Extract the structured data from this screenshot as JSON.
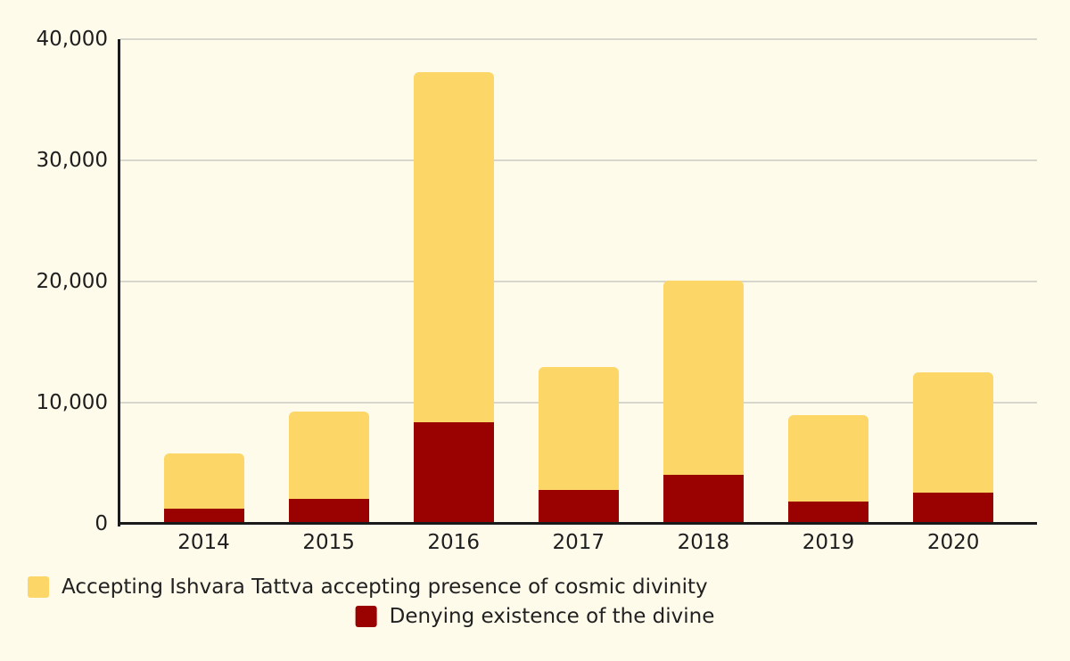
{
  "chart_data": {
    "type": "bar",
    "stacked": true,
    "title": "",
    "xlabel": "",
    "ylabel": "",
    "categories": [
      "2014",
      "2015",
      "2016",
      "2017",
      "2018",
      "2019",
      "2020"
    ],
    "series": [
      {
        "name": "Denying existence of the divine",
        "key": "denying",
        "color": "#9A0101",
        "values": [
          1200,
          2000,
          8300,
          2700,
          4000,
          1800,
          2500
        ]
      },
      {
        "name": "Accepting Ishvara Tattva accepting presence of cosmic divinity",
        "key": "accepting",
        "color": "#FCD666",
        "values": [
          4500,
          7200,
          28900,
          10200,
          16000,
          7100,
          9900
        ]
      }
    ],
    "stacked_totals": [
      5700,
      9200,
      37200,
      12900,
      20000,
      8900,
      12400
    ],
    "ylim": [
      0,
      40000
    ],
    "yticks": [
      {
        "value": 0,
        "label": "0"
      },
      {
        "value": 10000,
        "label": "10,000"
      },
      {
        "value": 20000,
        "label": "20,000"
      },
      {
        "value": 30000,
        "label": "30,000"
      },
      {
        "value": 40000,
        "label": "40,000"
      }
    ],
    "grid": true,
    "legend_position": "bottom"
  },
  "legend": {
    "items": [
      {
        "label": "Accepting Ishvara Tattva accepting presence of cosmic divinity",
        "color": "#FCD666"
      },
      {
        "label": "Denying existence of the divine",
        "color": "#9A0101"
      }
    ]
  },
  "colors": {
    "background": "#FFFBEB",
    "axis": "#1A1A1A",
    "gridline": "#D6D6CC",
    "text": "#1E1E1E"
  }
}
